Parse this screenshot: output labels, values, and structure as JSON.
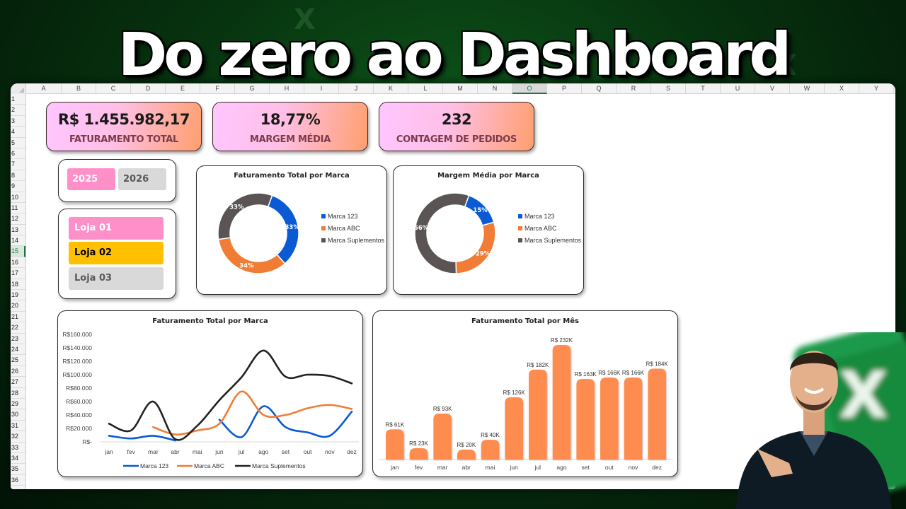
{
  "headline": "Do zero ao Dashboard",
  "spreadsheet": {
    "columns": [
      "A",
      "B",
      "C",
      "D",
      "E",
      "F",
      "G",
      "H",
      "I",
      "J",
      "K",
      "L",
      "M",
      "N",
      "O",
      "P",
      "Q",
      "R",
      "S",
      "T",
      "U",
      "V",
      "W",
      "X",
      "Y"
    ],
    "selected_column": "O",
    "rows": [
      "1",
      "2",
      "3",
      "4",
      "5",
      "6",
      "7",
      "8",
      "9",
      "10",
      "11",
      "12",
      "13",
      "14",
      "15",
      "16",
      "17",
      "18",
      "19",
      "20",
      "21",
      "22",
      "23",
      "24",
      "25",
      "26",
      "27",
      "28",
      "29",
      "30",
      "31",
      "32",
      "33",
      "34",
      "35",
      "36"
    ],
    "selected_row": "15"
  },
  "kpis": [
    {
      "value": "R$ 1.455.982,17",
      "label": "FATURAMENTO TOTAL"
    },
    {
      "value": "18,77%",
      "label": "MARGEM MÉDIA"
    },
    {
      "value": "232",
      "label": "CONTAGEM DE PEDIDOS"
    }
  ],
  "year_slicer": {
    "items": [
      {
        "label": "2025",
        "selected": true,
        "bg": "#ff8fc8",
        "color": "#ffffff"
      },
      {
        "label": "2026",
        "selected": false,
        "bg": "#d9d9d9",
        "color": "#595959"
      }
    ]
  },
  "store_slicer": {
    "items": [
      {
        "label": "Loja 01",
        "bg": "#ff8fc8",
        "color": "#ffffff"
      },
      {
        "label": "Loja 02",
        "bg": "#ffc000",
        "color": "#000000"
      },
      {
        "label": "Loja 03",
        "bg": "#d9d9d9",
        "color": "#595959"
      }
    ]
  },
  "colors": {
    "marca_123": "#0a5bd3",
    "marca_abc": "#f07c36",
    "marca_suplementos": "#5a5454",
    "line_suplementos": "#222222",
    "bar": "#ff8c4f",
    "excel_green": "#217346"
  },
  "chart_data": [
    {
      "type": "pie",
      "variant": "donut",
      "title": "Faturamento Total por Marca",
      "categories": [
        "Marca 123",
        "Marca ABC",
        "Marca Suplementos"
      ],
      "values": [
        33,
        34,
        33
      ],
      "labels": [
        "33%",
        "34%",
        "33%"
      ],
      "legend_position": "right"
    },
    {
      "type": "pie",
      "variant": "donut",
      "title": "Margem Média por Marca",
      "categories": [
        "Marca 123",
        "Marca ABC",
        "Marca Suplementos"
      ],
      "values": [
        15,
        29,
        56
      ],
      "labels": [
        "15%",
        "29%",
        "56%"
      ],
      "legend_position": "right"
    },
    {
      "type": "line",
      "title": "Faturamento Total por Marca",
      "categories": [
        "jan",
        "fev",
        "mar",
        "abr",
        "mai",
        "jun",
        "jul",
        "ago",
        "set",
        "out",
        "nov",
        "dez"
      ],
      "yticks": [
        "R$-",
        "R$20.000",
        "R$40.000",
        "R$60.000",
        "R$80.000",
        "R$100.000",
        "R$120.000",
        "R$140.000",
        "R$160.000"
      ],
      "ylim": [
        0,
        160000
      ],
      "series": [
        {
          "name": "Marca 123",
          "values": [
            9000,
            5000,
            9000,
            2000,
            null,
            33000,
            7000,
            53000,
            22000,
            14000,
            9000,
            45000
          ]
        },
        {
          "name": "Marca ABC",
          "values": [
            null,
            null,
            22000,
            11000,
            17000,
            27000,
            75000,
            40000,
            40000,
            50000,
            55000,
            49000
          ]
        },
        {
          "name": "Marca Suplementos",
          "values": [
            27000,
            17000,
            60000,
            4000,
            24000,
            62000,
            96000,
            136000,
            97000,
            100000,
            98000,
            87000
          ]
        }
      ],
      "legend_position": "bottom",
      "grid": false
    },
    {
      "type": "bar",
      "title": "Faturamento Total por Mês",
      "categories": [
        "jan",
        "fev",
        "mar",
        "abr",
        "mai",
        "jun",
        "jul",
        "ago",
        "set",
        "out",
        "nov",
        "dez"
      ],
      "values": [
        61,
        23,
        93,
        20,
        40,
        126,
        182,
        232,
        163,
        166,
        166,
        184
      ],
      "labels": [
        "R$ 61K",
        "R$ 23K",
        "R$ 93K",
        "R$ 20K",
        "R$ 40K",
        "R$ 126K",
        "R$ 182K",
        "R$ 232K",
        "R$ 163K",
        "R$ 166K",
        "R$ 166K",
        "R$ 184K"
      ],
      "unit": "R$ K",
      "grid": false
    }
  ]
}
